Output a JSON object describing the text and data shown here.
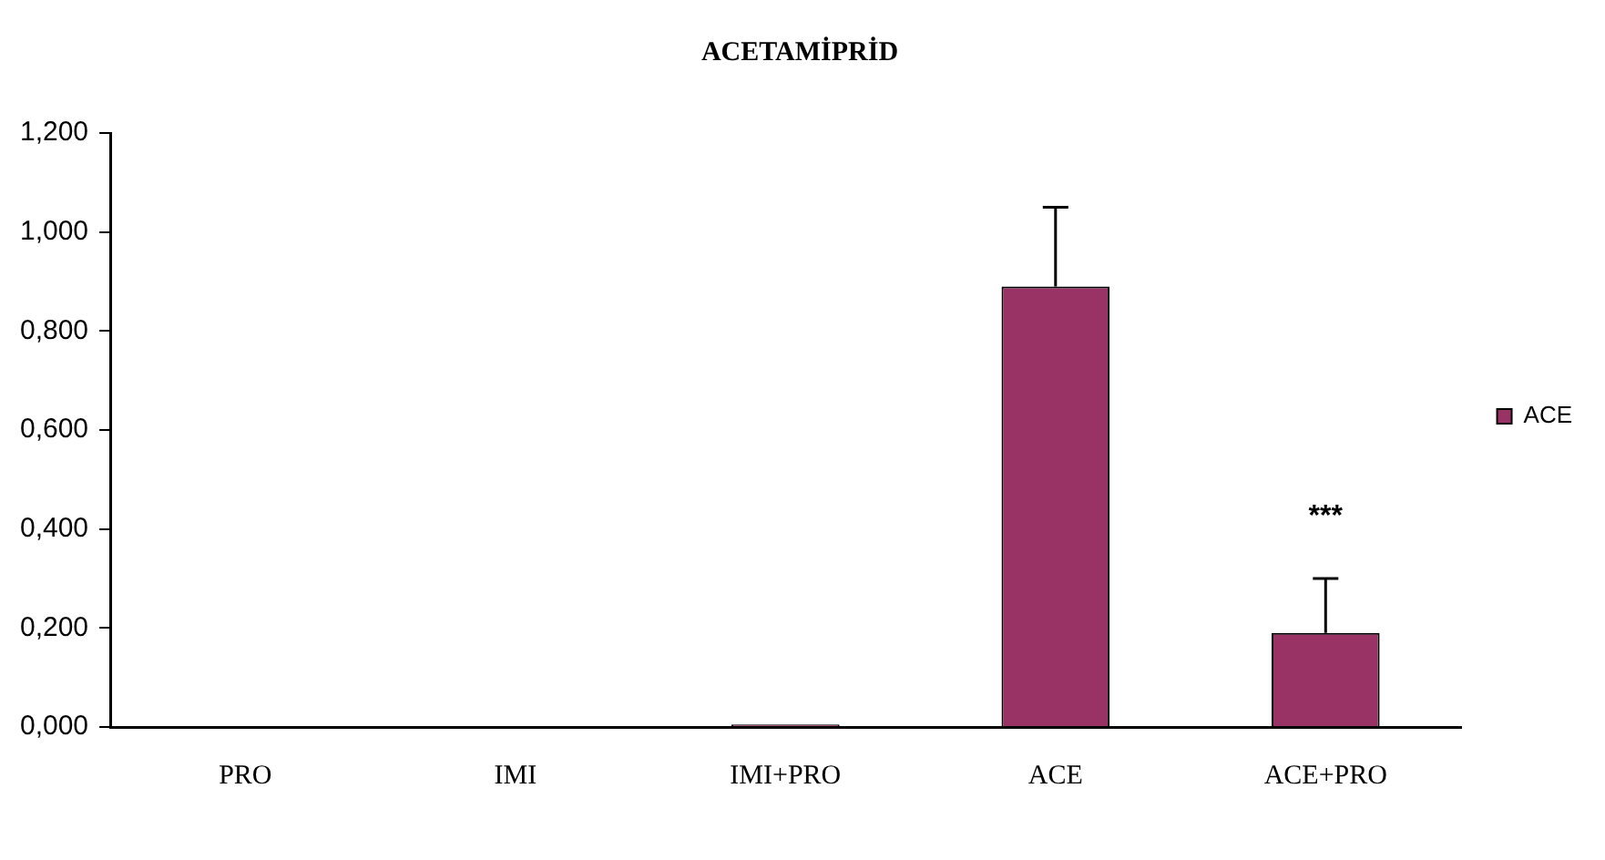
{
  "chart_data": {
    "type": "bar",
    "title": "ACETAMİPRİD",
    "categories": [
      "PRO",
      "IMI",
      "IMI+PRO",
      "ACE",
      "ACE+PRO"
    ],
    "series": [
      {
        "name": "ACE",
        "color": "#993366",
        "values": [
          0,
          0,
          0.005,
          0.89,
          0.19
        ],
        "errors": [
          null,
          null,
          null,
          [
            0.89,
            1.05
          ],
          [
            0.19,
            0.3
          ]
        ]
      }
    ],
    "ylim": [
      0,
      1.2
    ],
    "yticks": [
      {
        "value": 0,
        "label": "0,000"
      },
      {
        "value": 0.2,
        "label": "0,200"
      },
      {
        "value": 0.4,
        "label": "0,400"
      },
      {
        "value": 0.6,
        "label": "0,600"
      },
      {
        "value": 0.8,
        "label": "0,800"
      },
      {
        "value": 1,
        "label": "1,000"
      },
      {
        "value": 1.2,
        "label": "1,200"
      }
    ],
    "annotations": [
      {
        "text": "***",
        "x": "ACE+PRO",
        "y": 0.3
      }
    ],
    "grid": false,
    "legend": "right"
  }
}
